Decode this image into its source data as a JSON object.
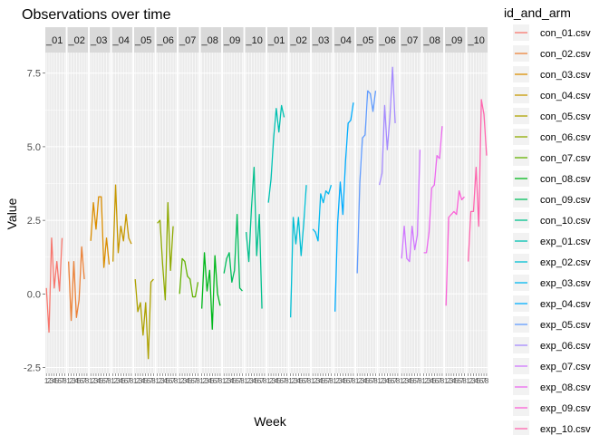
{
  "chart_data": {
    "type": "line",
    "title": "Observations over time",
    "xlabel": "Week",
    "ylabel": "Value",
    "ylim": [
      -2.7,
      8.2
    ],
    "yticks": [
      -2.5,
      0.0,
      2.5,
      5.0,
      7.5
    ],
    "ytick_labels": [
      "-2.5",
      "0.0",
      "2.5",
      "5.0",
      "7.5"
    ],
    "xlim": [
      0.6,
      8.4
    ],
    "facet_strips": [
      "_01",
      "_02",
      "_03",
      "_04",
      "_05",
      "_06",
      "_07",
      "_08",
      "_09",
      "_10",
      "_01",
      "_02",
      "_03",
      "_04",
      "_05",
      "_06",
      "_07",
      "_08",
      "_09",
      "_10"
    ],
    "facet_xtick_labels": [
      "1",
      "2",
      "3",
      "4",
      "5",
      "6",
      "7",
      "8"
    ],
    "legend_title": "id_and_arm",
    "legend_position": "right",
    "grid": true,
    "series": [
      {
        "name": "con_01.csv",
        "color": "#F8766D",
        "values": [
          0.2,
          -1.3,
          1.9,
          0.2,
          1.1,
          0.1,
          1.9,
          null
        ]
      },
      {
        "name": "con_02.csv",
        "color": "#EC8239",
        "values": [
          1.1,
          -0.9,
          1.1,
          -0.8,
          -0.2,
          1.6,
          0.5,
          null
        ]
      },
      {
        "name": "con_03.csv",
        "color": "#DB8E00",
        "values": [
          1.8,
          3.1,
          2.2,
          3.3,
          3.3,
          0.9,
          1.9,
          1.0
        ]
      },
      {
        "name": "con_04.csv",
        "color": "#C79800",
        "values": [
          1.1,
          3.7,
          1.4,
          2.3,
          1.8,
          2.7,
          1.9,
          1.7
        ]
      },
      {
        "name": "con_05.csv",
        "color": "#AEA200",
        "values": [
          0.5,
          -0.6,
          -0.3,
          -1.4,
          -0.3,
          -2.2,
          0.4,
          0.5
        ]
      },
      {
        "name": "con_06.csv",
        "color": "#8FAA00",
        "values": [
          2.4,
          2.5,
          1.0,
          -0.2,
          3.1,
          0.8,
          2.3,
          null
        ]
      },
      {
        "name": "con_07.csv",
        "color": "#64B200",
        "values": [
          0.0,
          1.2,
          1.1,
          0.6,
          0.5,
          -0.1,
          -0.1,
          0.4
        ]
      },
      {
        "name": "con_08.csv",
        "color": "#00B81B",
        "values": [
          -0.5,
          1.4,
          0.1,
          0.8,
          -1.2,
          1.3,
          0.0,
          -0.4
        ]
      },
      {
        "name": "con_09.csv",
        "color": "#00BD5C",
        "values": [
          0.7,
          1.2,
          1.4,
          0.4,
          0.8,
          2.7,
          0.2,
          0.1
        ]
      },
      {
        "name": "con_10.csv",
        "color": "#00C08D",
        "values": [
          2.1,
          1.1,
          2.9,
          4.3,
          1.3,
          2.7,
          -0.5,
          null
        ]
      },
      {
        "name": "exp_01.csv",
        "color": "#00C1B2",
        "values": [
          3.1,
          3.9,
          5.3,
          6.3,
          5.5,
          6.4,
          6.0,
          null
        ]
      },
      {
        "name": "exp_02.csv",
        "color": "#00BFD4",
        "values": [
          -0.8,
          2.6,
          1.7,
          2.6,
          1.3,
          2.4,
          3.7,
          null
        ]
      },
      {
        "name": "exp_03.csv",
        "color": "#00B8EF",
        "values": [
          2.2,
          2.1,
          1.8,
          3.4,
          3.1,
          3.5,
          3.4,
          3.7
        ]
      },
      {
        "name": "exp_04.csv",
        "color": "#00ADFF",
        "values": [
          -0.6,
          2.4,
          3.8,
          2.7,
          4.5,
          5.8,
          5.9,
          6.5
        ]
      },
      {
        "name": "exp_05.csv",
        "color": "#619CFF",
        "values": [
          0.7,
          3.8,
          5.3,
          5.4,
          6.9,
          6.8,
          6.2,
          6.9
        ]
      },
      {
        "name": "exp_06.csv",
        "color": "#A58AFF",
        "values": [
          3.7,
          4.1,
          6.4,
          4.9,
          6.0,
          7.7,
          5.8,
          null
        ]
      },
      {
        "name": "exp_07.csv",
        "color": "#D078FF",
        "values": [
          1.2,
          2.3,
          1.2,
          1.1,
          2.3,
          1.5,
          2.0,
          4.9
        ]
      },
      {
        "name": "exp_08.csv",
        "color": "#EC69EF",
        "values": [
          1.4,
          1.4,
          2.1,
          3.6,
          3.7,
          4.7,
          4.6,
          5.7
        ]
      },
      {
        "name": "exp_09.csv",
        "color": "#FB61D7",
        "values": [
          -0.4,
          2.6,
          2.7,
          2.8,
          2.7,
          3.5,
          3.2,
          3.3
        ]
      },
      {
        "name": "exp_10.csv",
        "color": "#FF65AE",
        "values": [
          1.1,
          2.8,
          2.8,
          4.3,
          2.3,
          6.6,
          6.1,
          4.7
        ]
      }
    ]
  }
}
